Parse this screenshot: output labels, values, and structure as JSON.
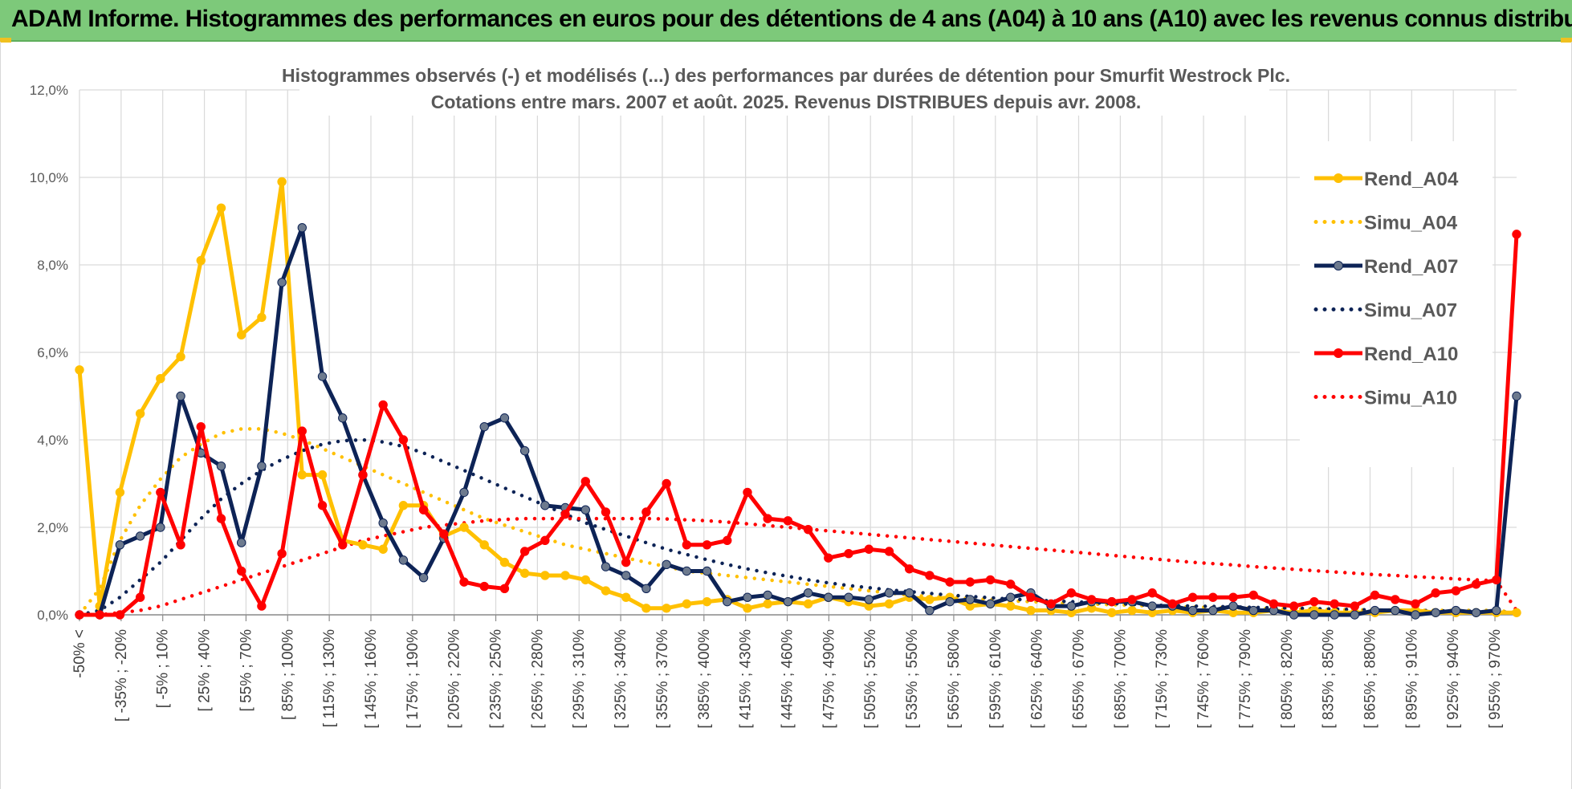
{
  "banner": {
    "title": "ADAM Informe. Histogrammes des performances en euros pour des détentions de 4 ans (A04) à 10 ans (A10) avec les revenus connus distribués"
  },
  "colors": {
    "banner_bg": "#7dc97a",
    "A04": "#ffc000",
    "A07": "#0d2356",
    "A10": "#ff0000",
    "grid": "#d9d9d9"
  },
  "chart_data": {
    "type": "line",
    "title_lines": [
      "Histogrammes observés (-) et modélisés (...) des performances par durées de détention pour Smurfit  Westrock Plc.",
      "Cotations entre mars. 2007 et août. 2025. Revenus DISTRIBUES depuis avr. 2008."
    ],
    "ylim": [
      0,
      12
    ],
    "yticks": [
      "0,0%",
      "2,0%",
      "4,0%",
      "6,0%",
      "8,0%",
      "10,0%",
      "12,0%"
    ],
    "grid": true,
    "legend_position": "right",
    "x_tick_labels": [
      "-50% <",
      "[ -35% ; -20%",
      "[ -5% ; 10%",
      "[ 25% ; 40%",
      "[ 55% ; 70%",
      "[ 85% ; 100%",
      "[ 115% ; 130%",
      "[ 145% ; 160%",
      "[ 175% ; 190%",
      "[ 205% ; 220%",
      "[ 235% ; 250%",
      "[ 265% ; 280%",
      "[ 295% ; 310%",
      "[ 325% ; 340%",
      "[ 355% ; 370%",
      "[ 385% ; 400%",
      "[ 415% ; 430%",
      "[ 445% ; 460%",
      "[ 475% ; 490%",
      "[ 505% ; 520%",
      "[ 535% ; 550%",
      "[ 565% ; 580%",
      "[ 595% ; 610%",
      "[ 625% ; 640%",
      "[ 655% ; 670%",
      "[ 685% ; 700%",
      "[ 715% ; 730%",
      "[ 745% ; 760%",
      "[ 775% ; 790%",
      "[ 805% ; 820%",
      "[ 835% ; 850%",
      "[ 865% ; 880%",
      "[ 895% ; 910%",
      "[ 925% ; 940%",
      "[ 955% ; 970%"
    ],
    "series": [
      {
        "name": "Rend_A04",
        "style": "solid",
        "color": "#ffc000",
        "values": [
          5.6,
          0.2,
          2.8,
          4.6,
          5.4,
          5.9,
          8.1,
          9.3,
          6.4,
          6.8,
          9.9,
          3.2,
          3.2,
          1.7,
          1.6,
          1.5,
          2.5,
          2.5,
          1.8,
          2.0,
          1.6,
          1.2,
          0.95,
          0.9,
          0.9,
          0.8,
          0.55,
          0.4,
          0.15,
          0.15,
          0.25,
          0.3,
          0.35,
          0.15,
          0.25,
          0.3,
          0.25,
          0.4,
          0.3,
          0.2,
          0.25,
          0.4,
          0.35,
          0.4,
          0.2,
          0.25,
          0.2,
          0.1,
          0.1,
          0.05,
          0.15,
          0.05,
          0.1,
          0.05,
          0.1,
          0.05,
          0.1,
          0.05,
          0.05,
          0.1,
          0.05,
          0.1,
          0.05,
          0.05,
          0.05,
          0.1,
          0.1,
          0.05,
          0.05,
          0.05,
          0.05,
          0.05
        ]
      },
      {
        "name": "Simu_A04",
        "style": "dotted",
        "color": "#ffc000",
        "values": [
          0.0,
          0.6,
          1.7,
          2.5,
          3.1,
          3.6,
          3.9,
          4.15,
          4.25,
          4.25,
          4.15,
          4.0,
          3.8,
          3.6,
          3.4,
          3.2,
          3.0,
          2.8,
          2.6,
          2.4,
          2.2,
          2.05,
          1.9,
          1.75,
          1.6,
          1.5,
          1.4,
          1.3,
          1.2,
          1.1,
          1.0,
          0.95,
          0.9,
          0.85,
          0.8,
          0.75,
          0.7,
          0.65,
          0.6,
          0.55,
          0.5,
          0.45,
          0.42,
          0.4,
          0.37,
          0.35,
          0.32,
          0.3,
          0.28,
          0.26,
          0.25,
          0.23,
          0.22,
          0.2,
          0.19,
          0.18,
          0.17,
          0.16,
          0.15,
          0.14,
          0.14,
          0.13,
          0.12,
          0.12,
          0.11,
          0.11,
          0.1,
          0.1,
          0.1,
          0.1,
          0.1,
          0.05
        ]
      },
      {
        "name": "Rend_A07",
        "style": "solid",
        "color": "#0d2356",
        "values": [
          0.0,
          0.0,
          1.6,
          1.8,
          2.0,
          5.0,
          3.7,
          3.4,
          1.65,
          3.4,
          7.6,
          8.85,
          5.45,
          4.5,
          3.2,
          2.1,
          1.25,
          0.85,
          1.75,
          2.8,
          4.3,
          4.5,
          3.75,
          2.5,
          2.45,
          2.4,
          1.1,
          0.9,
          0.6,
          1.15,
          1.0,
          1.0,
          0.3,
          0.4,
          0.45,
          0.3,
          0.5,
          0.4,
          0.4,
          0.35,
          0.5,
          0.5,
          0.1,
          0.3,
          0.35,
          0.25,
          0.4,
          0.5,
          0.2,
          0.2,
          0.3,
          0.3,
          0.3,
          0.2,
          0.2,
          0.1,
          0.1,
          0.2,
          0.1,
          0.1,
          0.0,
          0.0,
          0.0,
          0.0,
          0.1,
          0.1,
          0.0,
          0.05,
          0.1,
          0.05,
          0.1,
          5.0
        ]
      },
      {
        "name": "Simu_A07",
        "style": "dotted",
        "color": "#0d2356",
        "values": [
          0.0,
          0.1,
          0.4,
          0.8,
          1.2,
          1.7,
          2.2,
          2.65,
          3.0,
          3.3,
          3.55,
          3.75,
          3.9,
          3.98,
          4.0,
          3.95,
          3.85,
          3.7,
          3.5,
          3.3,
          3.1,
          2.9,
          2.7,
          2.5,
          2.3,
          2.1,
          1.95,
          1.8,
          1.65,
          1.5,
          1.38,
          1.26,
          1.15,
          1.05,
          0.96,
          0.88,
          0.8,
          0.73,
          0.67,
          0.62,
          0.57,
          0.53,
          0.49,
          0.45,
          0.42,
          0.39,
          0.36,
          0.34,
          0.32,
          0.3,
          0.28,
          0.26,
          0.24,
          0.22,
          0.21,
          0.2,
          0.19,
          0.18,
          0.17,
          0.16,
          0.15,
          0.14,
          0.13,
          0.12,
          0.11,
          0.1,
          0.1,
          0.09,
          0.08,
          0.08,
          0.07,
          0.05
        ]
      },
      {
        "name": "Rend_A10",
        "style": "solid",
        "color": "#ff0000",
        "values": [
          0.0,
          0.0,
          0.0,
          0.4,
          2.8,
          1.6,
          4.3,
          2.2,
          1.0,
          0.2,
          1.4,
          4.2,
          2.5,
          1.6,
          3.2,
          4.8,
          4.0,
          2.4,
          1.85,
          0.75,
          0.65,
          0.6,
          1.45,
          1.7,
          2.3,
          3.05,
          2.35,
          1.2,
          2.35,
          3.0,
          1.6,
          1.6,
          1.7,
          2.8,
          2.2,
          2.15,
          1.95,
          1.3,
          1.4,
          1.5,
          1.45,
          1.05,
          0.9,
          0.75,
          0.75,
          0.8,
          0.7,
          0.4,
          0.25,
          0.5,
          0.35,
          0.3,
          0.35,
          0.5,
          0.25,
          0.4,
          0.4,
          0.4,
          0.45,
          0.25,
          0.2,
          0.3,
          0.25,
          0.2,
          0.45,
          0.35,
          0.25,
          0.5,
          0.55,
          0.7,
          0.8,
          8.7
        ]
      },
      {
        "name": "Simu_A10",
        "style": "dotted",
        "color": "#ff0000",
        "values": [
          0.0,
          0.0,
          0.05,
          0.1,
          0.2,
          0.35,
          0.5,
          0.65,
          0.8,
          0.95,
          1.1,
          1.25,
          1.4,
          1.55,
          1.7,
          1.8,
          1.9,
          2.0,
          2.05,
          2.1,
          2.15,
          2.18,
          2.2,
          2.2,
          2.2,
          2.2,
          2.2,
          2.2,
          2.2,
          2.19,
          2.17,
          2.15,
          2.12,
          2.08,
          2.04,
          2.0,
          1.96,
          1.92,
          1.88,
          1.84,
          1.8,
          1.76,
          1.72,
          1.68,
          1.64,
          1.6,
          1.56,
          1.52,
          1.48,
          1.44,
          1.4,
          1.36,
          1.32,
          1.28,
          1.24,
          1.2,
          1.17,
          1.14,
          1.1,
          1.07,
          1.04,
          1.01,
          0.98,
          0.95,
          0.92,
          0.9,
          0.87,
          0.85,
          0.82,
          0.8,
          0.78,
          0.1
        ]
      }
    ]
  }
}
